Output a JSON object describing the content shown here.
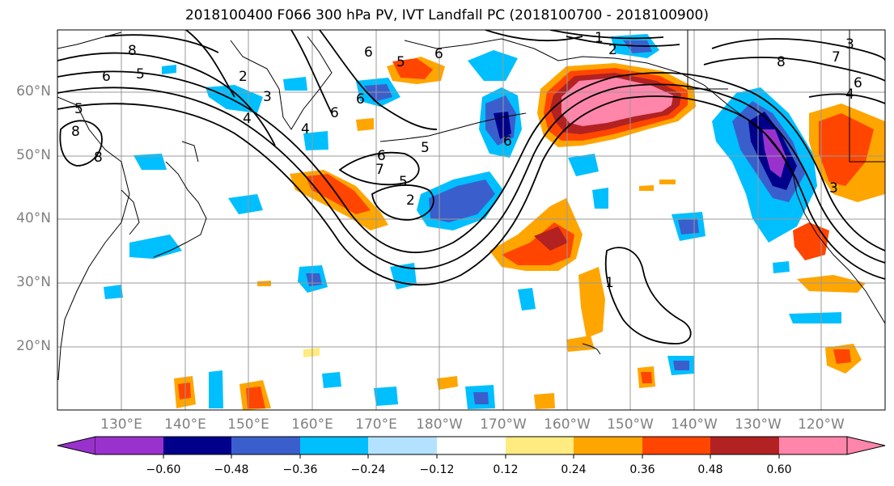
{
  "title": "2018100400 F066 300 hPa PV, IVT Landfall PC (2018100700 - 2018100900)",
  "latitude_labels": [
    "60°N",
    "50°N",
    "40°N",
    "30°N",
    "20°N"
  ],
  "longitude_labels": [
    "130°E",
    "140°E",
    "150°E",
    "160°E",
    "170°E",
    "180°W",
    "170°W",
    "160°W",
    "150°W",
    "140°W",
    "130°W",
    "120°W"
  ],
  "colorbar": {
    "ticks": [
      "−0.60",
      "−0.48",
      "−0.36",
      "−0.24",
      "−0.12",
      "0.12",
      "0.24",
      "0.36",
      "0.48",
      "0.60"
    ],
    "colors": [
      "#9932CC",
      "#00008B",
      "#3A5FCD",
      "#00BFFF",
      "#B2E2FF",
      "#FFFFFF",
      "#FFEB80",
      "#FFA500",
      "#FF4500",
      "#B22222",
      "#FF85AA"
    ]
  },
  "contour_labels": [
    "1",
    "2",
    "3",
    "4",
    "5",
    "6",
    "7",
    "8"
  ]
}
